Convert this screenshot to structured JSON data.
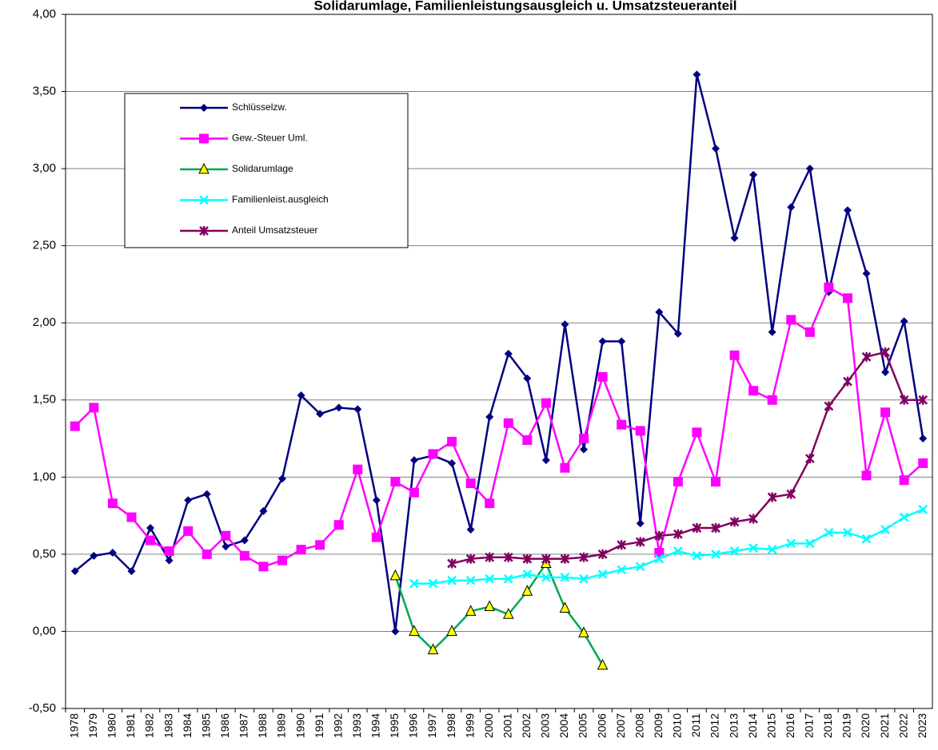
{
  "chart_data": {
    "type": "line",
    "title": "Solidarumlage, Familienleistungsausgleich u. Umsatzsteueranteil",
    "categories": [
      "1978",
      "1979",
      "1980",
      "1981",
      "1982",
      "1983",
      "1984",
      "1985",
      "1986",
      "1987",
      "1988",
      "1989",
      "1990",
      "1991",
      "1992",
      "1993",
      "1994",
      "1995",
      "1996",
      "1997",
      "1998",
      "1999",
      "2000",
      "2001",
      "2002",
      "2003",
      "2004",
      "2005",
      "2006",
      "2007",
      "2008",
      "2009",
      "2010",
      "2011",
      "2012",
      "2013",
      "2014",
      "2015",
      "2016",
      "2017",
      "2018",
      "2019",
      "2020",
      "2021",
      "2022",
      "2023"
    ],
    "series": [
      {
        "name": "Schlüsselzw.",
        "color": "#000080",
        "marker": "diamond",
        "values": [
          0.39,
          0.49,
          0.51,
          0.39,
          0.67,
          0.46,
          0.85,
          0.89,
          0.55,
          0.59,
          0.78,
          0.99,
          1.53,
          1.41,
          1.45,
          1.44,
          0.85,
          0.0,
          1.11,
          1.14,
          1.09,
          0.66,
          1.39,
          1.8,
          1.64,
          1.11,
          1.99,
          1.18,
          1.88,
          1.88,
          0.7,
          2.07,
          1.93,
          3.61,
          3.13,
          2.55,
          2.96,
          1.94,
          2.75,
          3.0,
          2.2,
          2.73,
          2.32,
          1.68,
          2.01,
          1.25
        ]
      },
      {
        "name": "Gew.-Steuer Uml.",
        "color": "#ff00ff",
        "marker": "square",
        "values": [
          1.33,
          1.45,
          0.83,
          0.74,
          0.59,
          0.52,
          0.65,
          0.5,
          0.62,
          0.49,
          0.42,
          0.46,
          0.53,
          0.56,
          0.69,
          1.05,
          0.61,
          0.97,
          0.9,
          1.15,
          1.23,
          0.96,
          0.83,
          1.35,
          1.24,
          1.48,
          1.06,
          1.25,
          1.65,
          1.34,
          1.3,
          0.51,
          0.97,
          1.29,
          0.97,
          1.79,
          1.56,
          1.5,
          2.02,
          1.94,
          2.23,
          2.16,
          1.01,
          1.42,
          0.98,
          1.09
        ]
      },
      {
        "name": "Solidarumlage",
        "color": "#00a651",
        "marker": "triangle",
        "marker_fill": "#ffff00",
        "values": [
          null,
          null,
          null,
          null,
          null,
          null,
          null,
          null,
          null,
          null,
          null,
          null,
          null,
          null,
          null,
          null,
          null,
          0.36,
          0.0,
          -0.12,
          0.0,
          0.13,
          0.16,
          0.11,
          0.26,
          0.44,
          0.15,
          -0.01,
          -0.22,
          null,
          null,
          null,
          null,
          null,
          null,
          null,
          null,
          null,
          null,
          null,
          null,
          null,
          null,
          null,
          null,
          null
        ]
      },
      {
        "name": "Familienleist.ausgleich",
        "color": "#00ffff",
        "marker": "x",
        "values": [
          null,
          null,
          null,
          null,
          null,
          null,
          null,
          null,
          null,
          null,
          null,
          null,
          null,
          null,
          null,
          null,
          null,
          null,
          0.31,
          0.31,
          0.33,
          0.33,
          0.34,
          0.34,
          0.37,
          0.35,
          0.35,
          0.34,
          0.37,
          0.4,
          0.42,
          0.47,
          0.52,
          0.49,
          0.5,
          0.52,
          0.54,
          0.53,
          0.57,
          0.57,
          0.64,
          0.64,
          0.6,
          0.66,
          0.74,
          0.79
        ]
      },
      {
        "name": "Anteil Umsatzsteuer",
        "color": "#800060",
        "marker": "star",
        "values": [
          null,
          null,
          null,
          null,
          null,
          null,
          null,
          null,
          null,
          null,
          null,
          null,
          null,
          null,
          null,
          null,
          null,
          null,
          null,
          null,
          0.44,
          0.47,
          0.48,
          0.48,
          0.47,
          0.47,
          0.47,
          0.48,
          0.5,
          0.56,
          0.58,
          0.62,
          0.63,
          0.67,
          0.67,
          0.71,
          0.73,
          0.87,
          0.89,
          1.12,
          1.46,
          1.62,
          1.78,
          1.81,
          1.5,
          1.5
        ]
      }
    ],
    "ylim": [
      -0.5,
      4.0
    ],
    "yticks": [
      {
        "value": -0.5,
        "label": "-0,50"
      },
      {
        "value": 0,
        "label": "0,00"
      },
      {
        "value": 0.5,
        "label": "0,50"
      },
      {
        "value": 1.0,
        "label": "1,00"
      },
      {
        "value": 1.5,
        "label": "1,50"
      },
      {
        "value": 2.0,
        "label": "2,00"
      },
      {
        "value": 2.5,
        "label": "2,50"
      },
      {
        "value": 3.0,
        "label": "3,00"
      },
      {
        "value": 3.5,
        "label": "3,50"
      },
      {
        "value": 4.0,
        "label": "4,00"
      }
    ],
    "negative_tick_color": "#ff0000",
    "grid": true,
    "legend": "upper left"
  }
}
